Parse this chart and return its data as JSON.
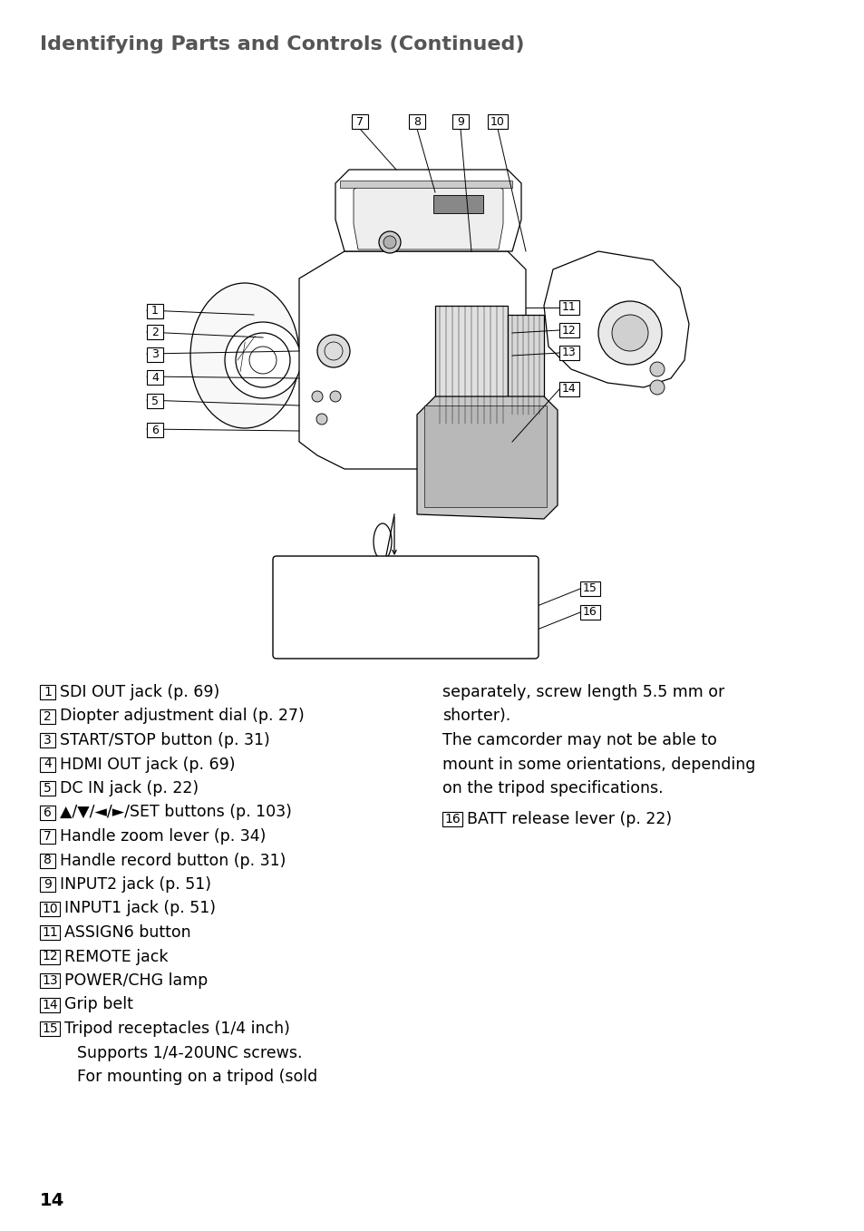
{
  "title": "Identifying Parts and Controls (Continued)",
  "title_color": "#555555",
  "background_color": "#ffffff",
  "page_number": "14",
  "left_column_items": [
    {
      "num": "1",
      "text": "SDI OUT jack (p. 69)"
    },
    {
      "num": "2",
      "text": "Diopter adjustment dial (p. 27)"
    },
    {
      "num": "3",
      "text": "START/STOP button (p. 31)"
    },
    {
      "num": "4",
      "text": "HDMI OUT jack (p. 69)"
    },
    {
      "num": "5",
      "text": "DC IN jack (p. 22)"
    },
    {
      "num": "6",
      "text": "▲/▼/◄/►/SET buttons (p. 103)"
    },
    {
      "num": "7",
      "text": "Handle zoom lever (p. 34)"
    },
    {
      "num": "8",
      "text": "Handle record button (p. 31)"
    },
    {
      "num": "9",
      "text": "INPUT2 jack (p. 51)"
    },
    {
      "num": "10",
      "text": "INPUT1 jack (p. 51)"
    },
    {
      "num": "11",
      "text": "ASSIGN6 button"
    },
    {
      "num": "12",
      "text": "REMOTE jack"
    },
    {
      "num": "13",
      "text": "POWER/CHG lamp"
    },
    {
      "num": "14",
      "text": "Grip belt"
    },
    {
      "num": "15",
      "text": "Tripod receptacles (1/4 inch)"
    }
  ],
  "item_15_extra_lines": [
    "Supports 1/4-20UNC screws.",
    "For mounting on a tripod (sold"
  ],
  "right_column_lines": [
    "separately, screw length 5.5 mm or",
    "shorter).",
    "The camcorder may not be able to",
    "mount in some orientations, depending",
    "on the tripod specifications."
  ],
  "item_16": {
    "num": "16",
    "text": "BATT release lever (p. 22)"
  },
  "text_color": "#000000",
  "label_color": "#000000",
  "box_color": "#000000",
  "fontsize_items": 12.5,
  "fontsize_title": 16
}
